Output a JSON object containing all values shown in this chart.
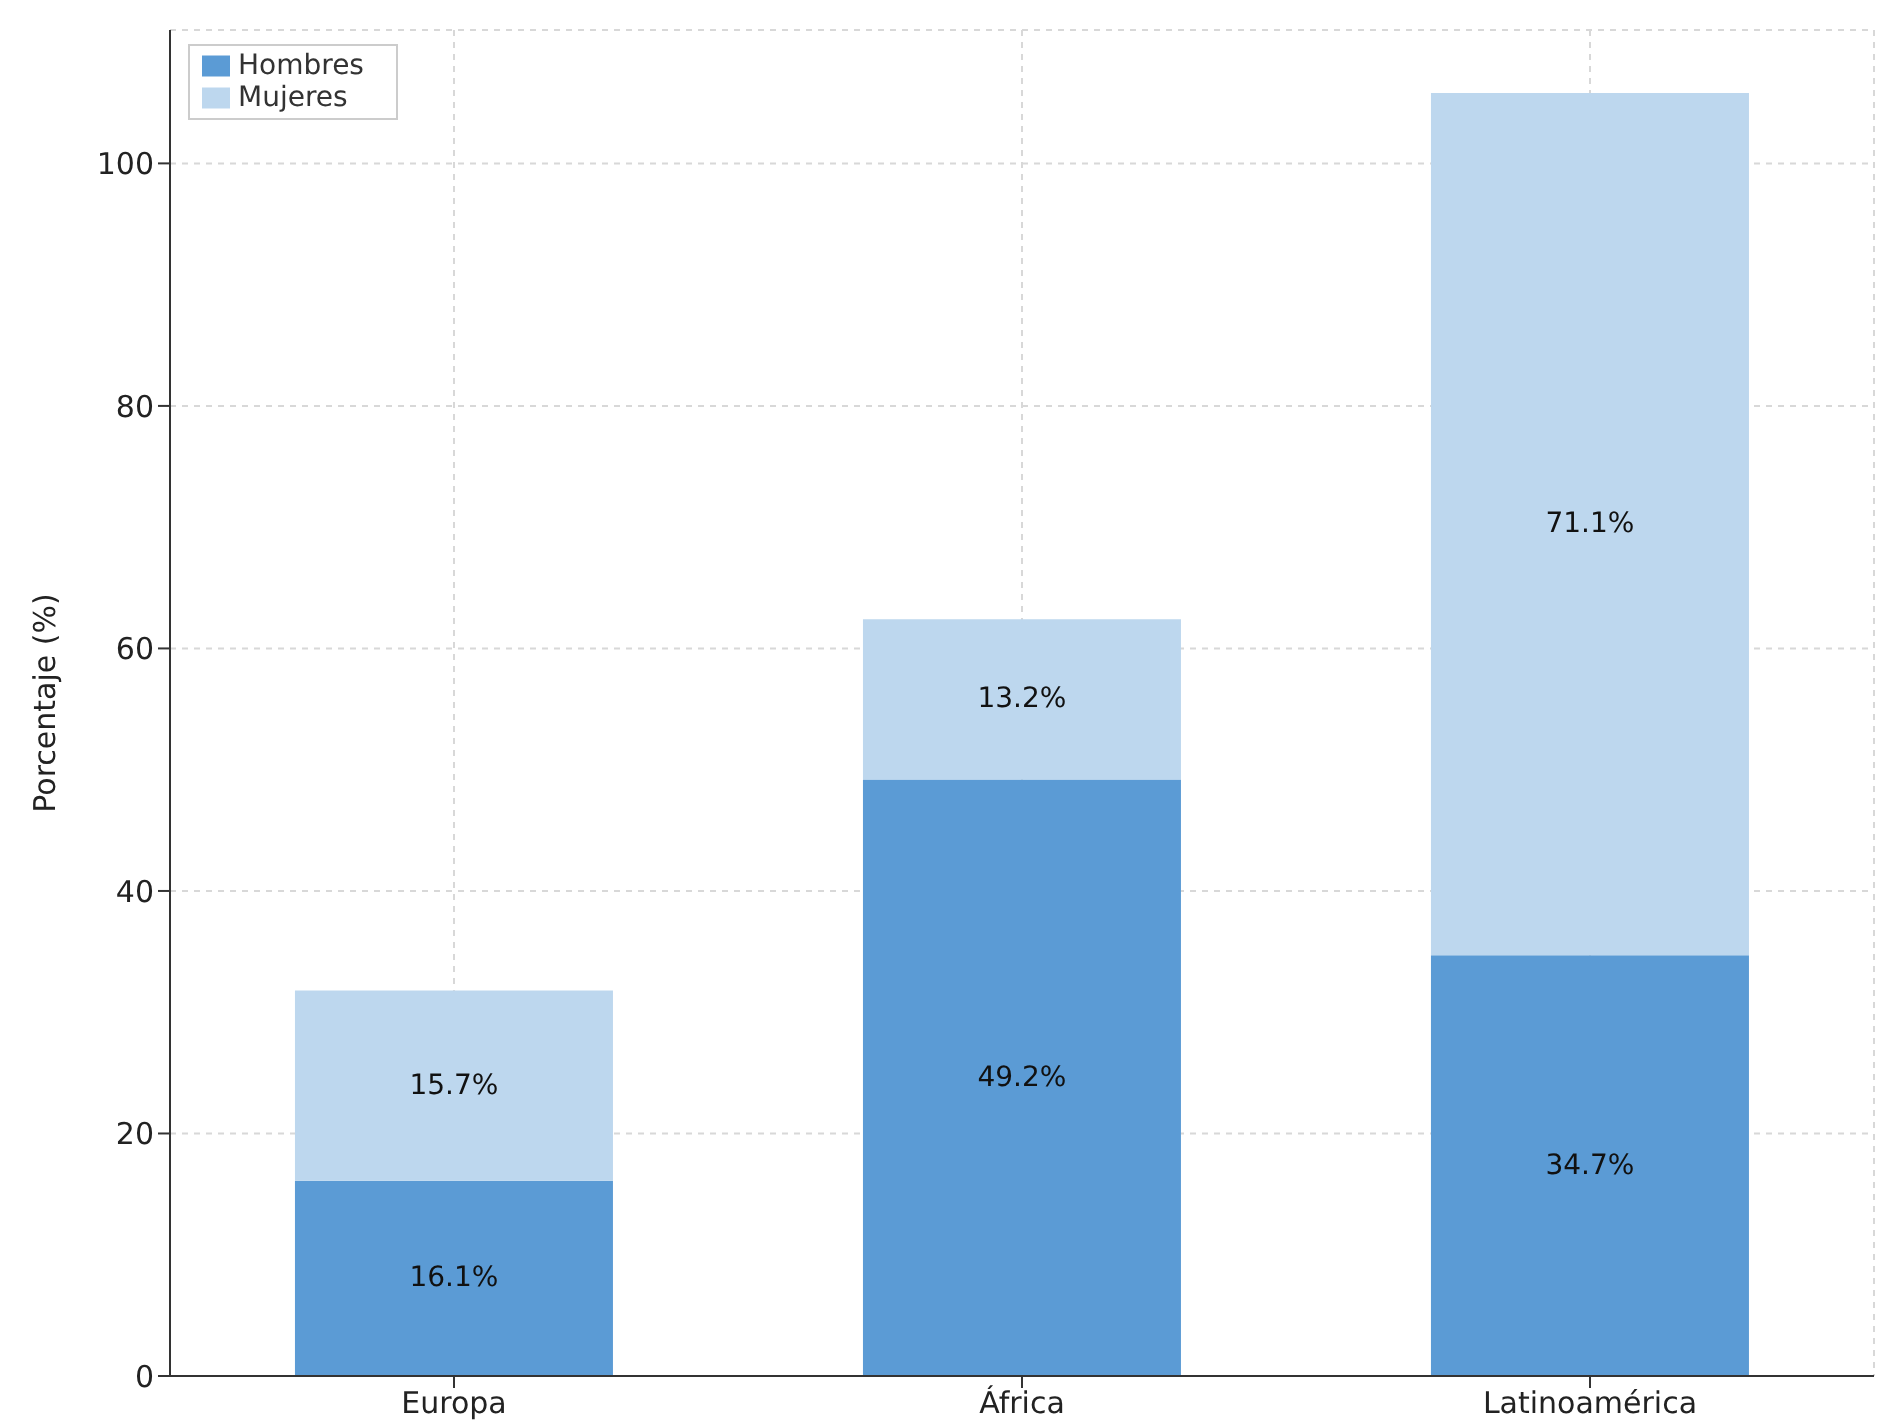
{
  "chart_data": {
    "type": "bar",
    "stacked": true,
    "ylabel": "Porcentaje (%)",
    "categories": [
      "Europa",
      "África",
      "Latinoamérica"
    ],
    "series": [
      {
        "name": "Hombres",
        "color": "#5b9bd5",
        "values": [
          16.1,
          49.2,
          34.7
        ],
        "value_labels": [
          "16.1%",
          "49.2%",
          "34.7%"
        ]
      },
      {
        "name": "Mujeres",
        "color": "#bdd7ee",
        "values": [
          15.7,
          13.2,
          71.1
        ],
        "value_labels": [
          "15.7%",
          "13.2%",
          "71.1%"
        ]
      }
    ],
    "ylim": [
      0,
      111
    ],
    "yticks": [
      0,
      20,
      40,
      60,
      80,
      100
    ],
    "grid": true,
    "legend": "top left"
  }
}
